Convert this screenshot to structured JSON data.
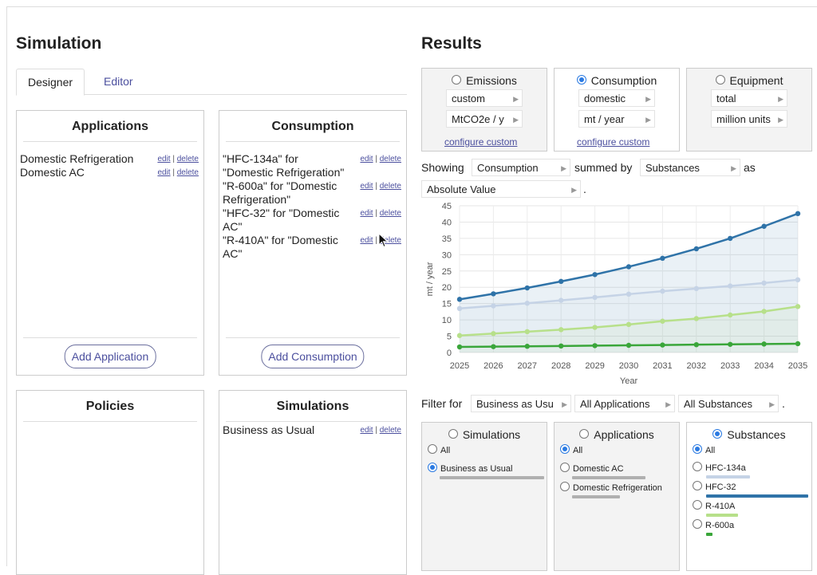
{
  "left": {
    "title": "Simulation",
    "tabs": [
      {
        "label": "Designer",
        "active": true
      },
      {
        "label": "Editor",
        "active": false
      }
    ],
    "applications": {
      "title": "Applications",
      "items": [
        "Domestic Refrigeration",
        "Domestic AC"
      ],
      "add_label": "Add Application"
    },
    "consumption": {
      "title": "Consumption",
      "items": [
        "\"HFC-134a\" for \"Domestic Refrigeration\"",
        "\"R-600a\" for \"Domestic Refrigeration\"",
        "\"HFC-32\" for \"Domestic AC\"",
        "\"R-410A\" for \"Domestic AC\""
      ],
      "add_label": "Add Consumption"
    },
    "policies": {
      "title": "Policies"
    },
    "simulations": {
      "title": "Simulations",
      "items": [
        "Business as Usual"
      ]
    },
    "edit_label": "edit",
    "delete_label": "delete",
    "sep": "|"
  },
  "results": {
    "title": "Results",
    "metrics": [
      {
        "label": "Emissions",
        "selected": false,
        "selects": [
          "custom",
          "MtCO2e / y"
        ],
        "configure": "configure custom"
      },
      {
        "label": "Consumption",
        "selected": true,
        "selects": [
          "domestic",
          "mt / year"
        ],
        "configure": "configure custom"
      },
      {
        "label": "Equipment",
        "selected": false,
        "selects": [
          "total",
          "million units"
        ]
      }
    ],
    "showing_label": "Showing",
    "showing_value": "Consumption",
    "summed_by_label": "summed by",
    "summed_by_value": "Substances",
    "as_label": "as",
    "as_value": "Absolute Value",
    "period": ".",
    "filter_label": "Filter for",
    "filter_values": [
      "Business as Usu",
      "All Applications",
      "All Substances"
    ],
    "filter_period": ".",
    "filters": [
      {
        "title": "Simulations",
        "selected": false,
        "options": [
          {
            "label": "All",
            "checked": false
          },
          {
            "label": "Business as Usual",
            "checked": true
          }
        ]
      },
      {
        "title": "Applications",
        "selected": false,
        "options": [
          {
            "label": "All",
            "checked": true
          },
          {
            "label": "Domestic AC",
            "checked": false
          },
          {
            "label": "Domestic Refrigeration",
            "checked": false
          }
        ]
      },
      {
        "title": "Substances",
        "selected": true,
        "options": [
          {
            "label": "All",
            "checked": true
          },
          {
            "label": "HFC-134a",
            "checked": false,
            "color": "#c5d3e6",
            "share": 0.43
          },
          {
            "label": "HFC-32",
            "checked": false,
            "color": "#2f73a8",
            "share": 1.0
          },
          {
            "label": "R-410A",
            "checked": false,
            "color": "#b7e08a",
            "share": 0.31
          },
          {
            "label": "R-600a",
            "checked": false,
            "color": "#3aa63a",
            "share": 0.06
          }
        ]
      }
    ]
  },
  "chart_data": {
    "type": "line",
    "xlabel": "Year",
    "ylabel": "mt / year",
    "x": [
      2025,
      2026,
      2027,
      2028,
      2029,
      2030,
      2031,
      2032,
      2033,
      2034,
      2035
    ],
    "ylim": [
      0,
      45
    ],
    "yticks": [
      0,
      5,
      10,
      15,
      20,
      25,
      30,
      35,
      40,
      45
    ],
    "grid": true,
    "series": [
      {
        "color": "#2f73a8",
        "values": [
          16.3,
          18.0,
          19.8,
          21.8,
          23.9,
          26.3,
          28.9,
          31.8,
          35.0,
          38.7,
          42.6
        ]
      },
      {
        "color": "#c5d3e6",
        "values": [
          13.5,
          14.3,
          15.1,
          16.0,
          16.9,
          17.9,
          18.8,
          19.6,
          20.4,
          21.3,
          22.3
        ]
      },
      {
        "color": "#b7e08a",
        "values": [
          5.2,
          5.8,
          6.4,
          7.0,
          7.7,
          8.6,
          9.6,
          10.4,
          11.5,
          12.6,
          14.1
        ]
      },
      {
        "color": "#3aa63a",
        "values": [
          1.7,
          1.8,
          1.9,
          2.0,
          2.1,
          2.2,
          2.3,
          2.4,
          2.5,
          2.6,
          2.7
        ]
      }
    ]
  }
}
